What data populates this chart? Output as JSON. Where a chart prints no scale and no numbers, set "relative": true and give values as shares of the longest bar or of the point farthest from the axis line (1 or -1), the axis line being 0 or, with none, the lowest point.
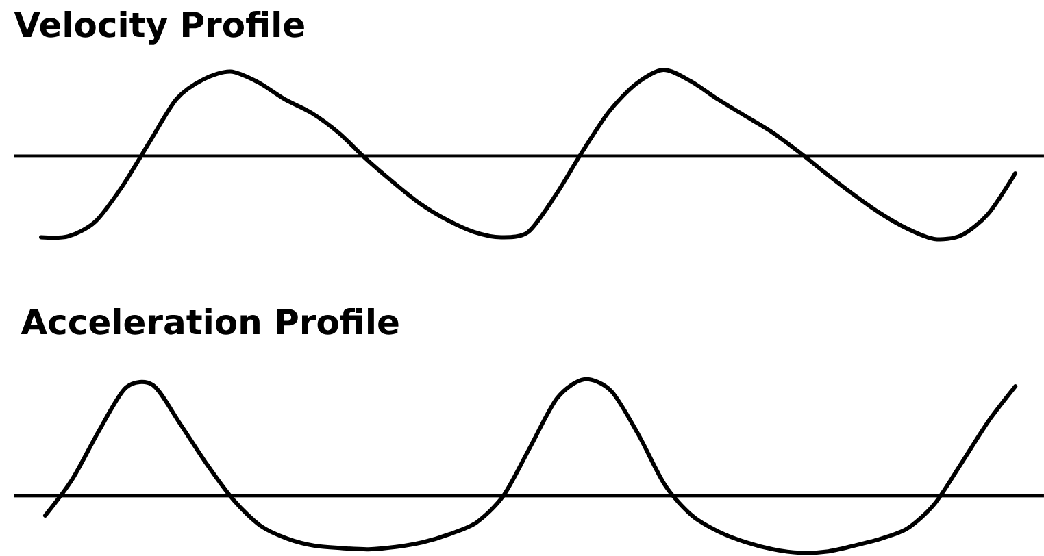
{
  "chart_data": [
    {
      "type": "line",
      "title": "Velocity Profile",
      "relative": true,
      "color": "#000000",
      "categories": [
        null,
        null,
        null,
        null,
        null,
        null,
        null,
        null,
        null,
        null,
        null,
        null,
        null,
        null,
        null,
        null,
        null,
        null,
        null,
        null,
        null,
        null,
        null,
        null,
        null,
        null,
        null,
        null,
        null,
        null,
        null,
        null,
        null,
        null,
        null,
        null,
        null
      ],
      "values": [
        -0.94,
        -0.93,
        -0.76,
        -0.35,
        0.16,
        0.66,
        0.89,
        0.98,
        0.86,
        0.66,
        0.5,
        0.27,
        -0.03,
        -0.3,
        -0.55,
        -0.74,
        -0.88,
        -0.94,
        -0.88,
        -0.46,
        0.05,
        0.52,
        0.84,
        1.0,
        0.87,
        0.66,
        0.47,
        0.28,
        0.05,
        -0.2,
        -0.44,
        -0.66,
        -0.84,
        -0.96,
        -0.92,
        -0.67,
        -0.2
      ]
    },
    {
      "type": "line",
      "title": "Acceleration Profile",
      "relative": true,
      "color": "#000000",
      "categories": [
        null,
        null,
        null,
        null,
        null,
        null,
        null,
        null,
        null,
        null,
        null,
        null,
        null,
        null,
        null,
        null,
        null,
        null,
        null,
        null,
        null,
        null,
        null,
        null,
        null,
        null,
        null,
        null,
        null,
        null,
        null,
        null,
        null,
        null,
        null,
        null,
        null
      ],
      "values": [
        -0.17,
        0.14,
        0.56,
        0.93,
        0.95,
        0.62,
        0.27,
        -0.04,
        -0.26,
        -0.37,
        -0.43,
        -0.45,
        -0.46,
        -0.44,
        -0.4,
        -0.33,
        -0.23,
        0,
        0.42,
        0.84,
        1.0,
        0.9,
        0.53,
        0.09,
        -0.17,
        -0.31,
        -0.4,
        -0.46,
        -0.49,
        -0.48,
        -0.43,
        -0.37,
        -0.28,
        -0.07,
        0.28,
        0.64,
        0.94
      ]
    }
  ]
}
